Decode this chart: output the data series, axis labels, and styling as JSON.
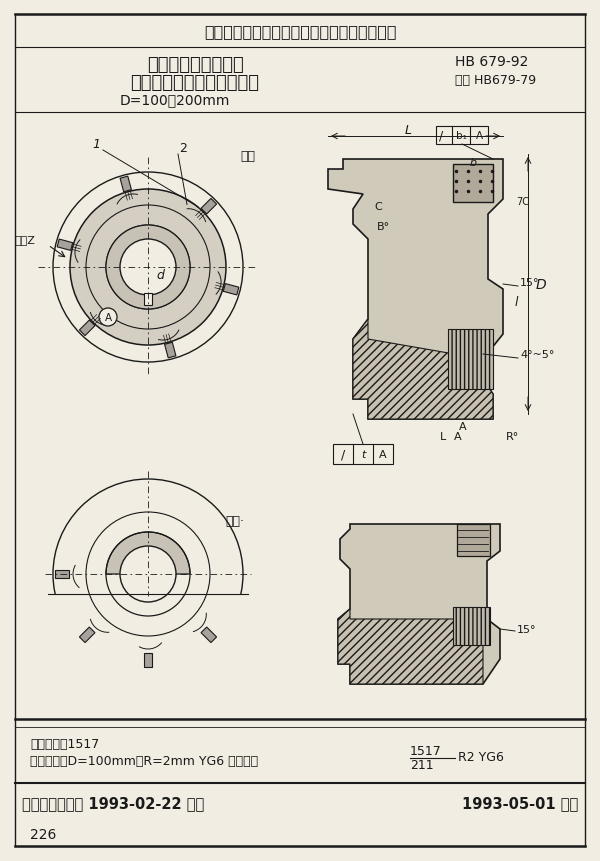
{
  "title_top": "中华人民共和国航空航天工业部航空工业标准",
  "title_main1": "加工轻合金用焊硬质",
  "title_main2": "合金刀片的镶齿套式面铣刀",
  "title_sub": "D=100＾200mm",
  "std_number": "HB 679-92",
  "std_replace": "代替 HB679-79",
  "label_right_cut": "右切",
  "label_left_cut": "左切·",
  "footer_dept": "航空航天工业部 1993-02-22 发布",
  "footer_date": "1993-05-01 实施",
  "class_code": "分类代号：1517",
  "mark_example": "标记示例：D=100mm、R=2mm YG6 右切铣刀",
  "mark_code": "1517",
  "mark_code2": "211",
  "mark_code3": "R2 YG6",
  "page_num": "226",
  "bg_color": "#f2ede3",
  "line_color": "#1a1a1a",
  "text_color": "#1a1a1a"
}
